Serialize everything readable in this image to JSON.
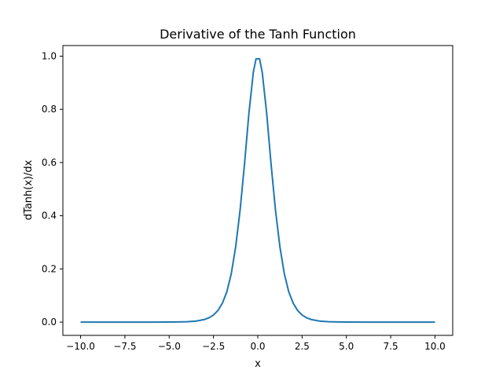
{
  "chart_data": {
    "type": "line",
    "title": "Derivative of the Tanh Function",
    "xlabel": "x",
    "ylabel": "dTanh(x)/dx",
    "xlim": [
      -11,
      11
    ],
    "ylim": [
      -0.05,
      1.04
    ],
    "xticks": [
      -10.0,
      -7.5,
      -5.0,
      -2.5,
      0.0,
      2.5,
      5.0,
      7.5,
      10.0
    ],
    "xtick_labels": [
      "−10.0",
      "−7.5",
      "−5.0",
      "−2.5",
      "0.0",
      "2.5",
      "5.0",
      "7.5",
      "10.0"
    ],
    "yticks": [
      0.0,
      0.2,
      0.4,
      0.6,
      0.8,
      1.0
    ],
    "ytick_labels": [
      "0.0",
      "0.2",
      "0.4",
      "0.6",
      "0.8",
      "1.0"
    ],
    "grid": false,
    "line_color": "#1f77b4",
    "series": [
      {
        "x": [
          -10.0,
          -9.0,
          -8.0,
          -7.0,
          -6.0,
          -5.0,
          -4.5,
          -4.0,
          -3.5,
          -3.0,
          -2.75,
          -2.5,
          -2.25,
          -2.0,
          -1.75,
          -1.5,
          -1.25,
          -1.0,
          -0.75,
          -0.5,
          -0.25,
          -0.1,
          0.1,
          0.25,
          0.5,
          0.75,
          1.0,
          1.25,
          1.5,
          1.75,
          2.0,
          2.25,
          2.5,
          2.75,
          3.0,
          3.5,
          4.0,
          4.5,
          5.0,
          6.0,
          7.0,
          8.0,
          9.0,
          10.0
        ],
        "y": [
          0.0,
          0.0,
          0.0,
          0.0,
          0.0,
          0.0002,
          0.0005,
          0.0013,
          0.0036,
          0.0099,
          0.0163,
          0.0266,
          0.0436,
          0.0707,
          0.1133,
          0.1807,
          0.2821,
          0.42,
          0.5936,
          0.7864,
          0.9401,
          0.99,
          0.99,
          0.9401,
          0.7864,
          0.5936,
          0.42,
          0.2821,
          0.1807,
          0.1133,
          0.0707,
          0.0436,
          0.0266,
          0.0163,
          0.0099,
          0.0036,
          0.0013,
          0.0005,
          0.0002,
          0.0,
          0.0,
          0.0,
          0.0,
          0.0
        ]
      }
    ]
  }
}
